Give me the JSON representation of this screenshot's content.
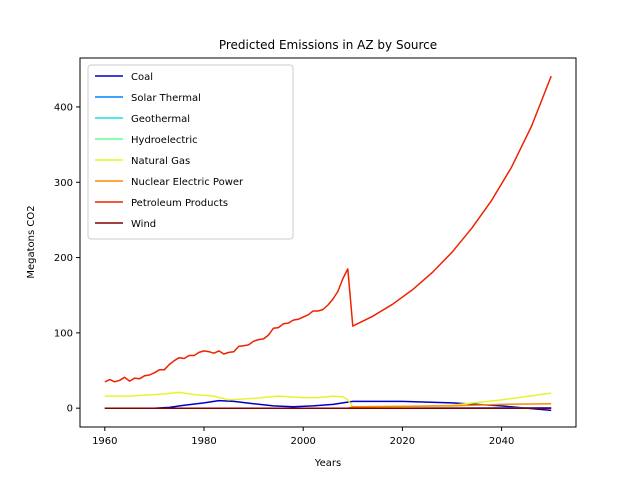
{
  "chart_data": {
    "type": "line",
    "title": "Predicted Emissions in AZ by Source",
    "xlabel": "Years",
    "ylabel": "Megatons CO2",
    "xlim": [
      1955,
      2055
    ],
    "ylim": [
      -25,
      465
    ],
    "x_ticks": [
      1960,
      1980,
      2000,
      2020,
      2040
    ],
    "y_ticks": [
      0,
      100,
      200,
      300,
      400
    ],
    "grid": false,
    "legend_position": "top-left",
    "series": [
      {
        "name": "Coal",
        "color": "#0000cc",
        "x": [
          1960,
          1965,
          1970,
          1973,
          1976,
          1980,
          1983,
          1986,
          1990,
          1994,
          1998,
          2002,
          2006,
          2009,
          2010,
          2020,
          2030,
          2040,
          2050
        ],
        "y": [
          0,
          0,
          0,
          1,
          4,
          7,
          10,
          9,
          6,
          3,
          2,
          3,
          5,
          8,
          9,
          9,
          7,
          3,
          -3
        ]
      },
      {
        "name": "Solar Thermal",
        "color": "#0080ff",
        "x": [
          1960,
          2000,
          2010,
          2020,
          2030,
          2040,
          2050
        ],
        "y": [
          0,
          0,
          0,
          0.1,
          0.2,
          0.3,
          0.5
        ]
      },
      {
        "name": "Geothermal",
        "color": "#20e0e0",
        "x": [
          1960,
          2010,
          2050
        ],
        "y": [
          0,
          0,
          0
        ]
      },
      {
        "name": "Hydroelectric",
        "color": "#60ff90",
        "x": [
          1960,
          2010,
          2050
        ],
        "y": [
          0,
          0,
          0
        ]
      },
      {
        "name": "Natural Gas",
        "color": "#e5f52a",
        "x": [
          1960,
          1965,
          1970,
          1972,
          1975,
          1978,
          1982,
          1985,
          1990,
          1995,
          2000,
          2003,
          2006,
          2008,
          2009,
          2010,
          2020,
          2030,
          2040,
          2050
        ],
        "y": [
          16,
          16,
          18,
          19,
          21,
          18,
          16,
          11,
          13,
          16,
          14,
          14,
          16,
          15,
          11,
          2,
          2,
          4,
          11,
          20
        ]
      },
      {
        "name": "Nuclear Electric Power",
        "color": "#ff8800",
        "x": [
          1960,
          1985,
          2009,
          2010,
          2030,
          2040,
          2050
        ],
        "y": [
          0,
          0,
          0,
          2,
          3,
          5,
          6
        ]
      },
      {
        "name": "Petroleum Products",
        "color": "#ee2200",
        "x": [
          1960,
          1961,
          1962,
          1963,
          1964,
          1965,
          1966,
          1967,
          1968,
          1969,
          1970,
          1971,
          1972,
          1973,
          1974,
          1975,
          1976,
          1977,
          1978,
          1979,
          1980,
          1981,
          1982,
          1983,
          1984,
          1985,
          1986,
          1987,
          1988,
          1989,
          1990,
          1991,
          1992,
          1993,
          1994,
          1995,
          1996,
          1997,
          1998,
          1999,
          2000,
          2001,
          2002,
          2003,
          2004,
          2005,
          2006,
          2007,
          2008,
          2009,
          2010,
          2014,
          2018,
          2022,
          2026,
          2030,
          2034,
          2038,
          2042,
          2046,
          2050
        ],
        "y": [
          35,
          38,
          35,
          37,
          41,
          36,
          40,
          39,
          43,
          44,
          47,
          51,
          51,
          58,
          63,
          67,
          66,
          70,
          70,
          74,
          76,
          75,
          73,
          76,
          72,
          74,
          75,
          82,
          83,
          84,
          89,
          91,
          92,
          97,
          106,
          107,
          112,
          113,
          117,
          118,
          121,
          124,
          129,
          129,
          131,
          137,
          145,
          155,
          172,
          185,
          109,
          122,
          138,
          157,
          180,
          207,
          239,
          276,
          320,
          374,
          441
        ]
      },
      {
        "name": "Wind",
        "color": "#800000",
        "x": [
          1960,
          2010,
          2050
        ],
        "y": [
          0,
          0,
          0
        ]
      }
    ]
  }
}
